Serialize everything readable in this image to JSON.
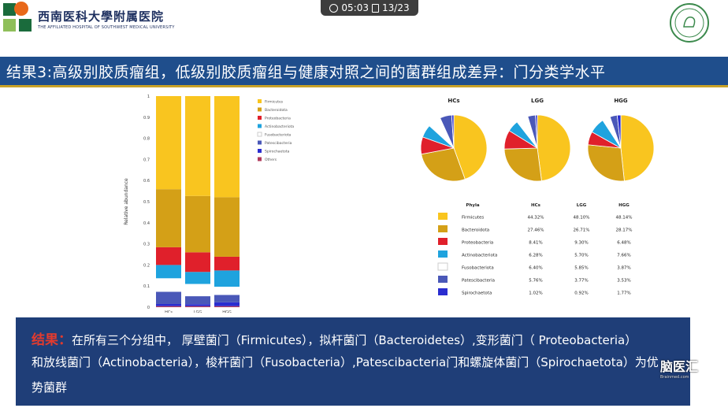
{
  "header": {
    "brand_cn": "西南医科大學附属医院",
    "brand_en": "THE AFFILIATED HOSPITAL OF SOUTHWEST MEDICAL UNIVERSITY",
    "timer": "05:03",
    "page": "13/23"
  },
  "title": "结果3:高级别胶质瘤组，低级别胶质瘤组与健康对照之间的菌群组成差异：门分类学水平",
  "chart_data": [
    {
      "type": "bar",
      "stacked": true,
      "categories": [
        "HCs",
        "LGG",
        "HGG"
      ],
      "ylabel": "Relative abundance",
      "ylim": [
        0,
        1
      ],
      "yticks": [
        "0",
        "0.1",
        "0.2",
        "0.3",
        "0.4",
        "0.5",
        "0.6",
        "0.7",
        "0.8",
        "0.9",
        "1"
      ],
      "legend_position": "right",
      "series": [
        {
          "name": "Others",
          "color": "#b03a5b",
          "values": [
            0.005,
            0.005,
            0.005
          ]
        },
        {
          "name": "Spirochaetota",
          "color": "#2a2dd0",
          "values": [
            0.01,
            0.009,
            0.018
          ]
        },
        {
          "name": "Patescibacteria",
          "color": "#4a58b8",
          "values": [
            0.058,
            0.038,
            0.035
          ]
        },
        {
          "name": "Fusobacteriota",
          "color": "#ffffff",
          "values": [
            0.064,
            0.058,
            0.039
          ]
        },
        {
          "name": "Actinobacteriota",
          "color": "#1fa3de",
          "values": [
            0.063,
            0.057,
            0.077
          ]
        },
        {
          "name": "Proteobacteria",
          "color": "#e0202b",
          "values": [
            0.084,
            0.093,
            0.065
          ]
        },
        {
          "name": "Bacteroidota",
          "color": "#d4a017",
          "values": [
            0.275,
            0.267,
            0.282
          ]
        },
        {
          "name": "Firmicutes",
          "color": "#f9c51f",
          "values": [
            0.441,
            0.473,
            0.479
          ]
        }
      ]
    },
    {
      "type": "pie",
      "charts": [
        {
          "title": "HCs",
          "values": [
            44.32,
            27.46,
            8.41,
            6.28,
            6.4,
            5.76,
            1.02
          ]
        },
        {
          "title": "LGG",
          "values": [
            48.1,
            26.71,
            9.3,
            5.7,
            5.85,
            3.77,
            0.92
          ]
        },
        {
          "title": "HGG",
          "values": [
            48.14,
            28.17,
            6.48,
            7.66,
            3.87,
            3.53,
            1.77
          ]
        }
      ],
      "colors": [
        "#f9c51f",
        "#d4a017",
        "#e0202b",
        "#1fa3de",
        "#ffffff",
        "#4a58b8",
        "#2a2dd0"
      ]
    },
    {
      "type": "table",
      "columns": [
        "Phyla",
        "HCs",
        "LGG",
        "HGG"
      ],
      "rows": [
        {
          "name": "Firmicutes",
          "color": "#f9c51f",
          "values": [
            "44.32%",
            "48.10%",
            "48.14%"
          ]
        },
        {
          "name": "Bacteroidota",
          "color": "#d4a017",
          "values": [
            "27.46%",
            "26.71%",
            "28.17%"
          ]
        },
        {
          "name": "Proteobacteria",
          "color": "#e0202b",
          "values": [
            "8.41%",
            "9.30%",
            "6.48%"
          ]
        },
        {
          "name": "Actinobacteriota",
          "color": "#1fa3de",
          "values": [
            "6.28%",
            "5.70%",
            "7.66%"
          ]
        },
        {
          "name": "Fusobacteriota",
          "color": "#ffffff",
          "values": [
            "6.40%",
            "5.85%",
            "3.87%"
          ]
        },
        {
          "name": "Patescibacteria",
          "color": "#4a58b8",
          "values": [
            "5.76%",
            "3.77%",
            "3.53%"
          ]
        },
        {
          "name": "Spirochaetota",
          "color": "#2a2dd0",
          "values": [
            "1.02%",
            "0.92%",
            "1.77%"
          ]
        }
      ]
    }
  ],
  "conclusion": {
    "label": "结果：",
    "line1": "在所有三个分组中， 厚壁菌门（Firmicutes），拟杆菌门（Bacteroidetes）,变形菌门（ Proteobacteria）",
    "line2": "和放线菌门（Actinobacteria），梭杆菌门（Fusobacteria）,Patescibacteria门和螺旋体菌门（Spirochaetota）为优",
    "line3": "势菌群"
  },
  "watermark": "脑医汇",
  "watermark_sub": "Brainmed.com"
}
